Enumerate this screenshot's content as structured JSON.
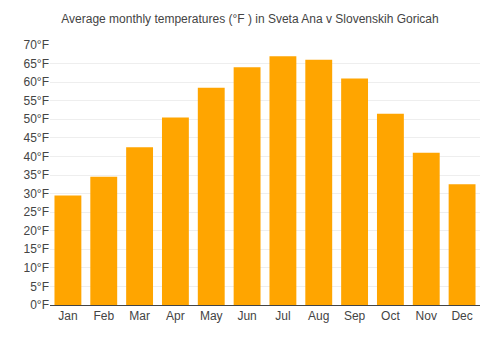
{
  "chart_data": {
    "type": "bar",
    "title": "Average monthly temperatures (°F ) in Sveta Ana v Slovenskih Goricah",
    "categories": [
      "Jan",
      "Feb",
      "Mar",
      "Apr",
      "May",
      "Jun",
      "Jul",
      "Aug",
      "Sep",
      "Oct",
      "Nov",
      "Dec"
    ],
    "values": [
      29.5,
      34.5,
      42.5,
      50.5,
      58.5,
      64.0,
      67.0,
      66.0,
      61.0,
      51.5,
      41.0,
      32.5
    ],
    "color": "#FFA500",
    "ylim": [
      0,
      70
    ],
    "yticks": [
      {
        "value": 0,
        "label": "0°F"
      },
      {
        "value": 5,
        "label": "5°F"
      },
      {
        "value": 10,
        "label": "10°F"
      },
      {
        "value": 15,
        "label": "15°F"
      },
      {
        "value": 20,
        "label": "20°F"
      },
      {
        "value": 25,
        "label": "25°F"
      },
      {
        "value": 30,
        "label": "30°F"
      },
      {
        "value": 35,
        "label": "35°F"
      },
      {
        "value": 40,
        "label": "40°F"
      },
      {
        "value": 45,
        "label": "45°F"
      },
      {
        "value": 50,
        "label": "50°F"
      },
      {
        "value": 55,
        "label": "55°F"
      },
      {
        "value": 60,
        "label": "60°F"
      },
      {
        "value": 65,
        "label": "65°F"
      },
      {
        "value": 70,
        "label": "70°F"
      }
    ],
    "grid": true
  }
}
